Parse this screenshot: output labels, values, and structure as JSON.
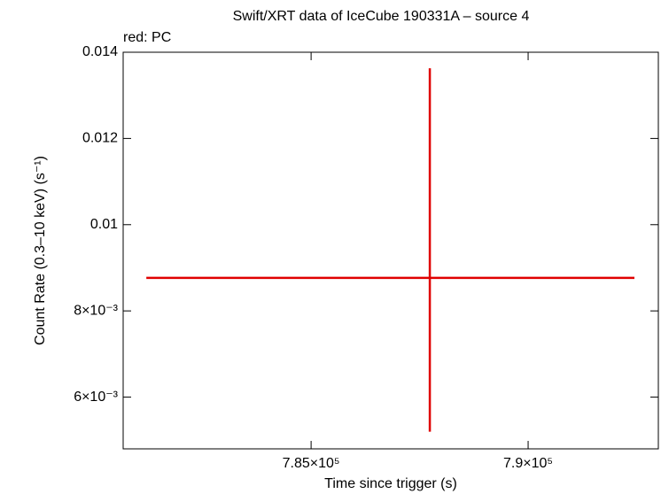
{
  "chart_data": {
    "type": "errorbar",
    "title": "Swift/XRT data of IceCube 190331A – source 4",
    "subtitle": "red: PC",
    "x_label": "Time since trigger (s)",
    "y_label": "Count Rate (0.3–10 keV) (s⁻¹)",
    "x": [
      787735
    ],
    "xerr_minus": [
      6531
    ],
    "xerr_plus": [
      4714
    ],
    "values": [
      0.008767
    ],
    "yerr_minus": [
      0.00357
    ],
    "yerr_plus": [
      0.00486
    ],
    "color": "#e00000",
    "xlim": [
      780670,
      793000
    ],
    "xticks": [
      {
        "value": 785000,
        "label": "7.85×10⁵"
      },
      {
        "value": 790000,
        "label": "7.9×10⁵"
      }
    ],
    "ylim": [
      0.0048,
      0.014
    ],
    "yticks": [
      {
        "value": 0.006,
        "label": "6×10⁻³"
      },
      {
        "value": 0.008,
        "label": "8×10⁻³"
      },
      0.01,
      0.012,
      0.014
    ]
  }
}
